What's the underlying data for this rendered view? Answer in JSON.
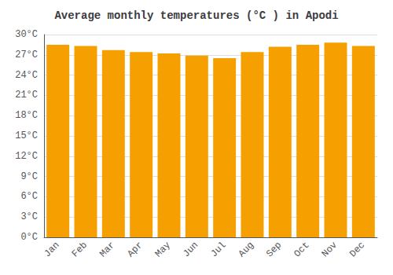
{
  "chart_data": {
    "type": "bar",
    "title": "Average monthly temperatures (°C ) in Apodi",
    "categories": [
      "Jan",
      "Feb",
      "Mar",
      "Apr",
      "May",
      "Jun",
      "Jul",
      "Aug",
      "Sep",
      "Oct",
      "Nov",
      "Dec"
    ],
    "values": [
      28.5,
      28.3,
      27.7,
      27.4,
      27.2,
      26.9,
      26.5,
      27.4,
      28.2,
      28.5,
      28.8,
      28.3
    ],
    "color": "#F5A000",
    "ylim": [
      0,
      30
    ],
    "yticks": [
      {
        "value": 0,
        "label": "0°C"
      },
      {
        "value": 3,
        "label": "3°C"
      },
      {
        "value": 6,
        "label": "6°C"
      },
      {
        "value": 9,
        "label": "9°C"
      },
      {
        "value": 12,
        "label": "12°C"
      },
      {
        "value": 15,
        "label": "15°C"
      },
      {
        "value": 18,
        "label": "18°C"
      },
      {
        "value": 21,
        "label": "21°C"
      },
      {
        "value": 24,
        "label": "24°C"
      },
      {
        "value": 27,
        "label": "27°C"
      },
      {
        "value": 30,
        "label": "30°C"
      }
    ],
    "grid": true
  }
}
